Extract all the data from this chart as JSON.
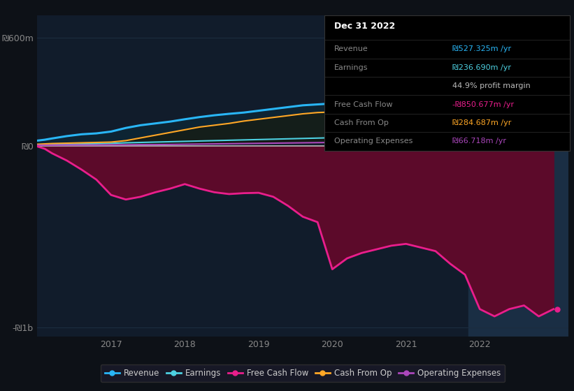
{
  "bg_color": "#0d1117",
  "plot_bg_color": "#111c2b",
  "title_box": {
    "date": "Dec 31 2022",
    "rows": [
      {
        "label": "Revenue",
        "value": "₪527.325m /yr",
        "label_color": "#888888",
        "value_color": "#29b6f6"
      },
      {
        "label": "Earnings",
        "value": "₪236.690m /yr",
        "label_color": "#888888",
        "value_color": "#4dd0e1"
      },
      {
        "label": "",
        "value": "44.9% profit margin",
        "label_color": "#888888",
        "value_color": "#bbbbbb"
      },
      {
        "label": "Free Cash Flow",
        "value": "-₪850.677m /yr",
        "label_color": "#888888",
        "value_color": "#e91e8c"
      },
      {
        "label": "Cash From Op",
        "value": "₪284.687m /yr",
        "label_color": "#888888",
        "value_color": "#ffa726"
      },
      {
        "label": "Operating Expenses",
        "value": "₪66.718m /yr",
        "label_color": "#888888",
        "value_color": "#ab47bc"
      }
    ]
  },
  "ylim": [
    -1050,
    720
  ],
  "xlim": [
    2016.0,
    2023.2
  ],
  "ytick_positions": [
    -1000,
    0,
    600
  ],
  "ytick_labels": [
    "-₪1b",
    "₪0",
    "₪600m"
  ],
  "xticks": [
    2017,
    2018,
    2019,
    2020,
    2021,
    2022
  ],
  "grid_color": "#1c2d3f",
  "zero_line_color": "#bbbbbb",
  "highlight_x_start": 2021.85,
  "highlight_color": "#1a2e44",
  "series": {
    "revenue": {
      "color": "#29b6f6",
      "lw": 2.2,
      "x": [
        2016.0,
        2016.1,
        2016.2,
        2016.4,
        2016.6,
        2016.8,
        2017.0,
        2017.2,
        2017.4,
        2017.6,
        2017.8,
        2018.0,
        2018.2,
        2018.4,
        2018.6,
        2018.8,
        2019.0,
        2019.2,
        2019.4,
        2019.6,
        2019.8,
        2020.0,
        2020.2,
        2020.4,
        2020.6,
        2020.8,
        2021.0,
        2021.2,
        2021.4,
        2021.6,
        2021.8,
        2022.0,
        2022.2,
        2022.4,
        2022.6,
        2022.8,
        2023.0
      ],
      "y": [
        30,
        35,
        42,
        55,
        65,
        70,
        80,
        100,
        115,
        125,
        135,
        148,
        160,
        170,
        178,
        185,
        195,
        205,
        215,
        225,
        230,
        235,
        240,
        248,
        258,
        265,
        278,
        305,
        340,
        370,
        395,
        420,
        450,
        490,
        530,
        570,
        610
      ]
    },
    "earnings": {
      "color": "#4dd0e1",
      "lw": 1.5,
      "x": [
        2016.0,
        2016.1,
        2016.2,
        2016.4,
        2016.6,
        2016.8,
        2017.0,
        2017.2,
        2017.4,
        2017.6,
        2017.8,
        2018.0,
        2018.2,
        2018.4,
        2018.6,
        2018.8,
        2019.0,
        2019.2,
        2019.4,
        2019.6,
        2019.8,
        2020.0,
        2020.2,
        2020.4,
        2020.6,
        2020.8,
        2021.0,
        2021.2,
        2021.4,
        2021.6,
        2021.8,
        2022.0,
        2022.2,
        2022.4,
        2022.6,
        2022.8,
        2023.0
      ],
      "y": [
        5,
        7,
        8,
        10,
        12,
        13,
        15,
        18,
        20,
        22,
        24,
        26,
        28,
        30,
        32,
        34,
        36,
        38,
        40,
        42,
        44,
        46,
        48,
        50,
        52,
        54,
        58,
        62,
        68,
        75,
        82,
        90,
        105,
        125,
        150,
        175,
        210
      ]
    },
    "cash_from_op": {
      "color": "#ffa726",
      "lw": 1.5,
      "x": [
        2016.0,
        2016.1,
        2016.2,
        2016.4,
        2016.6,
        2016.8,
        2017.0,
        2017.2,
        2017.4,
        2017.6,
        2017.8,
        2018.0,
        2018.2,
        2018.4,
        2018.6,
        2018.8,
        2019.0,
        2019.2,
        2019.4,
        2019.6,
        2019.8,
        2020.0,
        2020.2,
        2020.4,
        2020.6,
        2020.8,
        2021.0,
        2021.2,
        2021.4,
        2021.6,
        2021.8,
        2022.0,
        2022.2,
        2022.4,
        2022.6,
        2022.8,
        2023.0
      ],
      "y": [
        10,
        12,
        14,
        16,
        18,
        20,
        22,
        30,
        45,
        60,
        75,
        90,
        105,
        115,
        125,
        138,
        148,
        158,
        168,
        178,
        185,
        188,
        190,
        195,
        200,
        205,
        208,
        215,
        220,
        218,
        215,
        210,
        205,
        230,
        260,
        280,
        295
      ]
    },
    "operating_expenses": {
      "color": "#ab47bc",
      "lw": 1.5,
      "x": [
        2016.0,
        2016.1,
        2016.2,
        2016.4,
        2016.6,
        2016.8,
        2017.0,
        2017.2,
        2017.4,
        2017.6,
        2017.8,
        2018.0,
        2018.2,
        2018.4,
        2018.6,
        2018.8,
        2019.0,
        2019.2,
        2019.4,
        2019.6,
        2019.8,
        2020.0,
        2020.2,
        2020.4,
        2020.6,
        2020.8,
        2021.0,
        2021.2,
        2021.4,
        2021.6,
        2021.8,
        2022.0,
        2022.2,
        2022.4,
        2022.6,
        2022.8,
        2023.0
      ],
      "y": [
        5,
        5,
        5,
        6,
        6,
        6,
        7,
        7,
        8,
        8,
        9,
        10,
        11,
        12,
        13,
        14,
        15,
        16,
        17,
        18,
        19,
        20,
        21,
        22,
        23,
        24,
        25,
        28,
        32,
        40,
        50,
        60,
        63,
        65,
        67,
        68,
        70
      ]
    },
    "free_cash_flow": {
      "color": "#e91e8c",
      "fill_color": "#5c0a2a",
      "lw": 2.0,
      "x": [
        2016.0,
        2016.1,
        2016.2,
        2016.4,
        2016.6,
        2016.8,
        2017.0,
        2017.2,
        2017.4,
        2017.6,
        2017.8,
        2018.0,
        2018.2,
        2018.4,
        2018.6,
        2018.8,
        2019.0,
        2019.2,
        2019.4,
        2019.6,
        2019.8,
        2020.0,
        2020.2,
        2020.4,
        2020.6,
        2020.8,
        2021.0,
        2021.2,
        2021.4,
        2021.6,
        2021.8,
        2022.0,
        2022.2,
        2022.4,
        2022.6,
        2022.8,
        2023.0
      ],
      "y": [
        -2,
        -15,
        -40,
        -80,
        -130,
        -185,
        -270,
        -295,
        -280,
        -255,
        -235,
        -210,
        -235,
        -255,
        -265,
        -260,
        -258,
        -280,
        -330,
        -390,
        -420,
        -680,
        -620,
        -590,
        -570,
        -550,
        -540,
        -560,
        -580,
        -650,
        -710,
        -900,
        -940,
        -900,
        -880,
        -940,
        -900
      ]
    }
  },
  "legend": [
    {
      "label": "Revenue",
      "color": "#29b6f6"
    },
    {
      "label": "Earnings",
      "color": "#4dd0e1"
    },
    {
      "label": "Free Cash Flow",
      "color": "#e91e8c"
    },
    {
      "label": "Cash From Op",
      "color": "#ffa726"
    },
    {
      "label": "Operating Expenses",
      "color": "#ab47bc"
    }
  ]
}
